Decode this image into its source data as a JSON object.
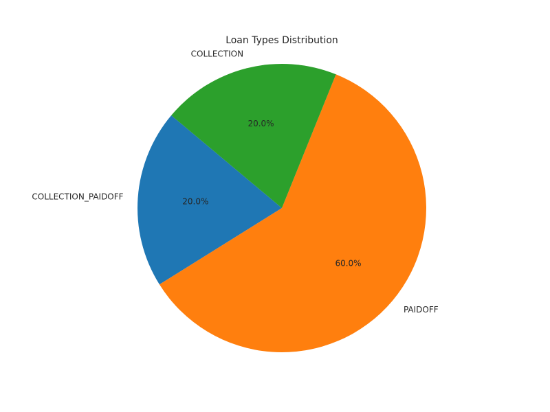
{
  "chart_data": {
    "type": "pie",
    "title": "Loan Types Distribution",
    "categories": [
      "COLLECTION_PAIDOFF",
      "PAIDOFF",
      "COLLECTION"
    ],
    "values": [
      20.0,
      60.0,
      20.0
    ],
    "percent_labels": [
      "20.0%",
      "60.0%",
      "20.0%"
    ],
    "colors": [
      "#1f77b4",
      "#ff7f0e",
      "#2ca02c"
    ],
    "start_angle_deg": 140,
    "direction": "counterclockwise",
    "legend": "none"
  }
}
